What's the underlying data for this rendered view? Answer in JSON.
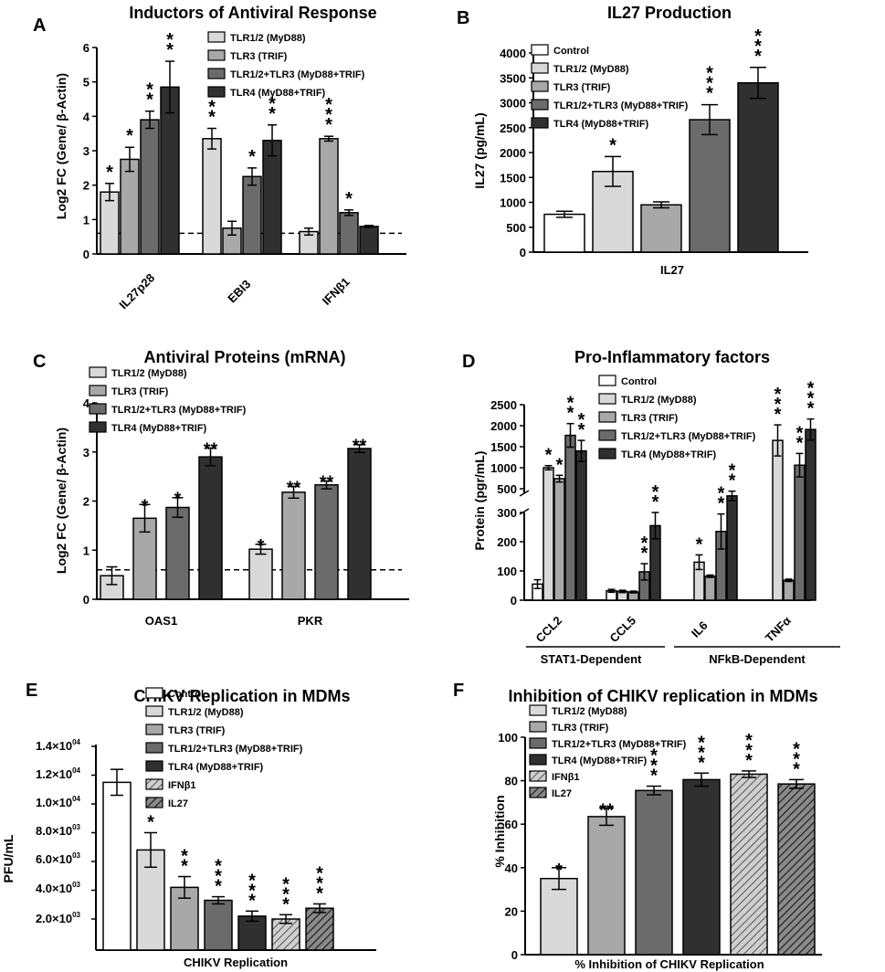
{
  "colors": {
    "Control": "#ffffff",
    "TLR1/2": "#d9d9d9",
    "TLR3": "#a8a8a8",
    "TLR1/2+TLR3": "#6b6b6b",
    "TLR4": "#303030",
    "IFNb1": "#b3b3b3",
    "IL27": "#5a5a5a"
  },
  "chart_data": [
    {
      "panel": "A",
      "type": "bar",
      "title": "Inductors of Antiviral Response",
      "ylabel": "Log2 FC (Gene/ β-Actin)",
      "ylim": [
        0,
        6
      ],
      "yticks": [
        "0",
        "1",
        "2",
        "3",
        "4",
        "5",
        "6"
      ],
      "baseline": 0.6,
      "categories": [
        "IL27p28",
        "EBI3",
        "IFNβ1"
      ],
      "legend": [
        "TLR1/2 (MyD88)",
        "TLR3 (TRIF)",
        "TLR1/2+TLR3 (MyD88+TRIF)",
        "TLR4 (MyD88+TRIF)"
      ],
      "series": [
        {
          "name": "TLR1/2 (MyD88)",
          "key": "TLR1/2",
          "values": [
            1.8,
            3.35,
            0.65
          ],
          "errors": [
            0.25,
            0.3,
            0.1
          ],
          "stars": [
            "*",
            "**",
            ""
          ]
        },
        {
          "name": "TLR3 (TRIF)",
          "key": "TLR3",
          "values": [
            2.75,
            0.75,
            3.35
          ],
          "errors": [
            0.35,
            0.2,
            0.07
          ],
          "stars": [
            "*",
            "",
            "***"
          ]
        },
        {
          "name": "TLR1/2+TLR3 (MyD88+TRIF)",
          "key": "TLR1/2+TLR3",
          "values": [
            3.9,
            2.25,
            1.2
          ],
          "errors": [
            0.25,
            0.25,
            0.08
          ],
          "stars": [
            "**",
            "*",
            "*"
          ]
        },
        {
          "name": "TLR4 (MyD88+TRIF)",
          "key": "TLR4",
          "values": [
            4.85,
            3.3,
            0.8
          ],
          "errors": [
            0.75,
            0.45,
            0.03
          ],
          "stars": [
            "**",
            "**",
            ""
          ]
        }
      ]
    },
    {
      "panel": "B",
      "type": "bar",
      "title": "IL27 Production",
      "ylabel": "IL27 (pg/mL)",
      "ylim": [
        0,
        4000
      ],
      "yticks": [
        "0",
        "500",
        "1000",
        "1500",
        "2000",
        "2500",
        "3000",
        "3500",
        "4000"
      ],
      "categories": [
        "IL27"
      ],
      "legend": [
        "Control",
        "TLR1/2 (MyD88)",
        "TLR3 (TRIF)",
        "TLR1/2+TLR3 (MyD88+TRIF)",
        "TLR4 (MyD88+TRIF)"
      ],
      "series": [
        {
          "name": "Control",
          "key": "Control",
          "values": [
            760
          ],
          "errors": [
            60
          ],
          "stars": [
            ""
          ]
        },
        {
          "name": "TLR1/2 (MyD88)",
          "key": "TLR1/2",
          "values": [
            1620
          ],
          "errors": [
            300
          ],
          "stars": [
            "*"
          ]
        },
        {
          "name": "TLR3 (TRIF)",
          "key": "TLR3",
          "values": [
            950
          ],
          "errors": [
            60
          ],
          "stars": [
            ""
          ]
        },
        {
          "name": "TLR1/2+TLR3 (MyD88+TRIF)",
          "key": "TLR1/2+TLR3",
          "values": [
            2660
          ],
          "errors": [
            300
          ],
          "stars": [
            "***"
          ]
        },
        {
          "name": "TLR4 (MyD88+TRIF)",
          "key": "TLR4",
          "values": [
            3400
          ],
          "errors": [
            310
          ],
          "stars": [
            "***"
          ]
        }
      ]
    },
    {
      "panel": "C",
      "type": "bar",
      "title": "Antiviral Proteins (mRNA)",
      "ylabel": "Log2 FC (Gene/ β-Actin)",
      "ylim": [
        0,
        4
      ],
      "yticks": [
        "0",
        "1",
        "2",
        "3",
        "4"
      ],
      "baseline": 0.6,
      "categories": [
        "OAS1",
        "PKR"
      ],
      "legend": [
        "TLR1/2 (MyD88)",
        "TLR3 (TRIF)",
        "TLR1/2+TLR3 (MyD88+TRIF)",
        "TLR4 (MyD88+TRIF)"
      ],
      "series": [
        {
          "name": "TLR1/2 (MyD88)",
          "key": "TLR1/2",
          "values": [
            0.48,
            1.02
          ],
          "errors": [
            0.18,
            0.1
          ],
          "stars": [
            "",
            "*"
          ]
        },
        {
          "name": "TLR3 (TRIF)",
          "key": "TLR3",
          "values": [
            1.65,
            2.18
          ],
          "errors": [
            0.28,
            0.12
          ],
          "stars": [
            "*",
            "**"
          ]
        },
        {
          "name": "TLR1/2+TLR3 (MyD88+TRIF)",
          "key": "TLR1/2+TLR3",
          "values": [
            1.87,
            2.33
          ],
          "errors": [
            0.2,
            0.08
          ],
          "stars": [
            "*",
            "**"
          ]
        },
        {
          "name": "TLR4 (MyD88+TRIF)",
          "key": "TLR4",
          "values": [
            2.9,
            3.07
          ],
          "errors": [
            0.18,
            0.08
          ],
          "stars": [
            "**",
            "**"
          ]
        }
      ]
    },
    {
      "panel": "D",
      "type": "bar",
      "title": "Pro-Inflammatory factors",
      "ylabel": "Protein (pgr/mL)",
      "broken_axis": {
        "lower": [
          0,
          300
        ],
        "upper": [
          300,
          2500
        ]
      },
      "yticks_lower": [
        "0",
        "100",
        "200",
        "300"
      ],
      "yticks_upper": [
        "500",
        "1000",
        "1500",
        "2000",
        "2500"
      ],
      "categories": [
        "CCL2",
        "CCL5",
        "IL6",
        "TNFα"
      ],
      "group_labels": [
        "STAT1-Dependent",
        "NFkB-Dependent"
      ],
      "legend": [
        "Control",
        "TLR1/2 (MyD88)",
        "TLR3 (TRIF)",
        "TLR1/2+TLR3 (MyD88+TRIF)",
        "TLR4 (MyD88+TRIF)"
      ],
      "series": [
        {
          "name": "Control",
          "key": "Control",
          "values": [
            55,
            32,
            0,
            0
          ],
          "errors": [
            15,
            5,
            0,
            0
          ],
          "stars": [
            "",
            "",
            "",
            ""
          ]
        },
        {
          "name": "TLR1/2 (MyD88)",
          "key": "TLR1/2",
          "values": [
            1000,
            30,
            130,
            1650
          ],
          "errors": [
            50,
            4,
            25,
            370
          ],
          "stars": [
            "*",
            "",
            "*",
            "***"
          ]
        },
        {
          "name": "TLR3 (TRIF)",
          "key": "TLR3",
          "values": [
            740,
            28,
            82,
            68
          ],
          "errors": [
            80,
            3,
            4,
            4
          ],
          "stars": [
            "*",
            "",
            "",
            ""
          ]
        },
        {
          "name": "TLR1/2+TLR3 (MyD88+TRIF)",
          "key": "TLR1/2+TLR3",
          "values": [
            1770,
            97,
            235,
            1060
          ],
          "errors": [
            280,
            28,
            60,
            280
          ],
          "stars": [
            "**",
            "**",
            "**",
            "**"
          ]
        },
        {
          "name": "TLR4 (MyD88+TRIF)",
          "key": "TLR4",
          "values": [
            1400,
            255,
            440,
            1910
          ],
          "errors": [
            250,
            45,
            40,
            250
          ],
          "stars": [
            "**",
            "**",
            "**",
            "***"
          ]
        }
      ]
    },
    {
      "panel": "E",
      "type": "bar",
      "title": "CHIKV Replication in MDMs",
      "ylabel": "PFU/mL",
      "xlabel": "CHIKV Replication",
      "ylim": [
        0,
        14000
      ],
      "ytick_mantissas": [
        "2.0",
        "4.0",
        "6.0",
        "8.0",
        "1.0",
        "1.2",
        "1.4"
      ],
      "ytick_exponents": [
        "03",
        "03",
        "03",
        "03",
        "04",
        "04",
        "04"
      ],
      "ytick_times": "×10",
      "legend": [
        "Control",
        "TLR1/2 (MyD88)",
        "TLR3 (TRIF)",
        "TLR1/2+TLR3 (MyD88+TRIF)",
        "TLR4 (MyD88+TRIF)",
        "IFNβ1",
        "IL27"
      ],
      "series": [
        {
          "name": "Control",
          "key": "Control",
          "values": [
            11500
          ],
          "errors": [
            900
          ],
          "stars": [
            ""
          ]
        },
        {
          "name": "TLR1/2 (MyD88)",
          "key": "TLR1/2",
          "values": [
            6800
          ],
          "errors": [
            1200
          ],
          "stars": [
            "*"
          ]
        },
        {
          "name": "TLR3 (TRIF)",
          "key": "TLR3",
          "values": [
            4200
          ],
          "errors": [
            750
          ],
          "stars": [
            "**"
          ]
        },
        {
          "name": "TLR1/2+TLR3 (MyD88+TRIF)",
          "key": "TLR1/2+TLR3",
          "values": [
            3300
          ],
          "errors": [
            250
          ],
          "stars": [
            "***"
          ]
        },
        {
          "name": "TLR4 (MyD88+TRIF)",
          "key": "TLR4",
          "values": [
            2200
          ],
          "errors": [
            350
          ],
          "stars": [
            "***"
          ]
        },
        {
          "name": "IFNβ1",
          "key": "IFNb1",
          "values": [
            2000
          ],
          "errors": [
            300
          ],
          "stars": [
            "***"
          ],
          "hatched": true
        },
        {
          "name": "IL27",
          "key": "IL27",
          "values": [
            2750
          ],
          "errors": [
            300
          ],
          "stars": [
            "***"
          ],
          "hatched": true
        }
      ]
    },
    {
      "panel": "F",
      "type": "bar",
      "title": "Inhibition of CHIKV replication in MDMs",
      "ylabel": "% Inhibition",
      "xlabel": "% Inhibition of CHIKV Replication",
      "ylim": [
        0,
        100
      ],
      "yticks": [
        "0",
        "20",
        "40",
        "60",
        "80",
        "100"
      ],
      "legend": [
        "TLR1/2 (MyD88)",
        "TLR3 (TRIF)",
        "TLR1/2+TLR3 (MyD88+TRIF)",
        "TLR4 (MyD88+TRIF)",
        "IFNβ1",
        "IL27"
      ],
      "series": [
        {
          "name": "TLR1/2 (MyD88)",
          "key": "TLR1/2",
          "values": [
            35
          ],
          "errors": [
            5
          ],
          "stars": [
            "*"
          ]
        },
        {
          "name": "TLR3 (TRIF)",
          "key": "TLR3",
          "values": [
            63.5
          ],
          "errors": [
            4
          ],
          "stars": [
            "**"
          ]
        },
        {
          "name": "TLR1/2+TLR3 (MyD88+TRIF)",
          "key": "TLR1/2+TLR3",
          "values": [
            75.5
          ],
          "errors": [
            2
          ],
          "stars": [
            "***"
          ]
        },
        {
          "name": "TLR4 (MyD88+TRIF)",
          "key": "TLR4",
          "values": [
            80.5
          ],
          "errors": [
            3
          ],
          "stars": [
            "***"
          ]
        },
        {
          "name": "IFNβ1",
          "key": "IFNb1",
          "values": [
            83
          ],
          "errors": [
            1.5
          ],
          "stars": [
            "***"
          ],
          "hatched": true
        },
        {
          "name": "IL27",
          "key": "IL27",
          "values": [
            78.5
          ],
          "errors": [
            2
          ],
          "stars": [
            "***"
          ],
          "hatched": true
        }
      ]
    }
  ]
}
